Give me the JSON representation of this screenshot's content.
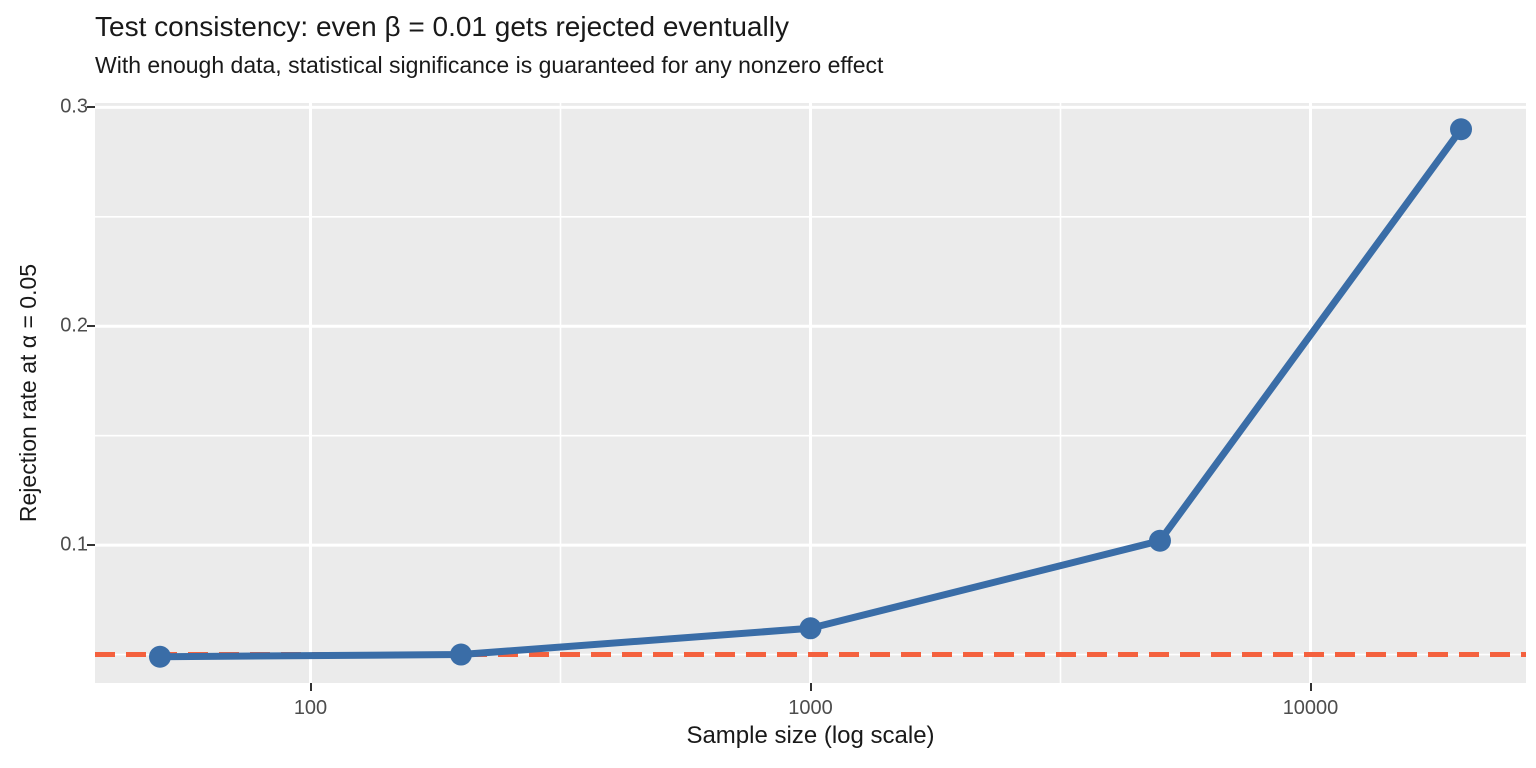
{
  "chart_data": {
    "type": "line",
    "title": "Test consistency: even β = 0.01 gets rejected eventually",
    "subtitle": "With enough data, statistical significance is guaranteed for any nonzero effect",
    "xlabel": "Sample size (log scale)",
    "ylabel": "Rejection rate at α = 0.05",
    "x": [
      50,
      200,
      1000,
      5000,
      20000
    ],
    "y": [
      0.049,
      0.05,
      0.062,
      0.102,
      0.29
    ],
    "x_scale": "log10",
    "xlim_log10": [
      1.569,
      4.431
    ],
    "ylim": [
      0.037,
      0.302
    ],
    "x_ticks": {
      "values": [
        100,
        1000,
        10000
      ],
      "labels": [
        "100",
        "1000",
        "10000"
      ]
    },
    "x_minor_log10": [
      2.5,
      3.5
    ],
    "y_ticks": {
      "values": [
        0.1,
        0.2,
        0.3
      ],
      "labels": [
        "0.1",
        "0.2",
        "0.3"
      ]
    },
    "y_minor": [
      0.05,
      0.15,
      0.25
    ],
    "hline": {
      "y": 0.05,
      "style": "dashed"
    },
    "grid": true,
    "legend": "none",
    "colors": {
      "line": "#3A6DA7",
      "point": "#3A6DA7",
      "hline": "#F4613E",
      "panel_bg": "#EBEBEB",
      "grid_major": "#FFFFFF",
      "grid_minor": "#FFFFFF",
      "tick_label": "#4D4D4D",
      "tick_mark": "#333333",
      "text": "#191919"
    }
  }
}
